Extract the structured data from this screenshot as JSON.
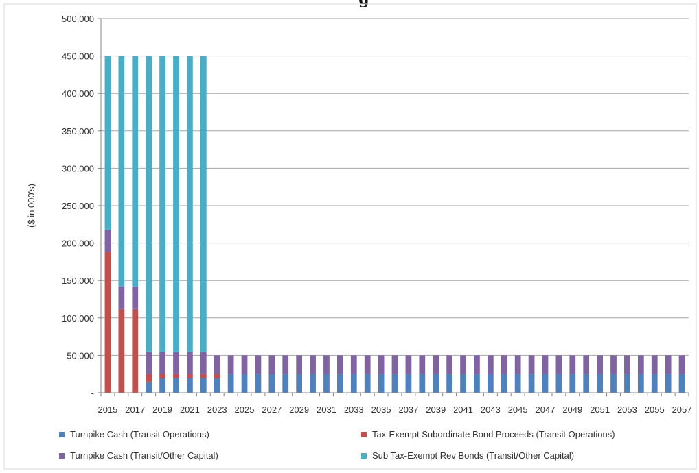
{
  "title_fragment": "g",
  "chart_data": {
    "type": "bar",
    "stacked": true,
    "title": "",
    "xlabel": "",
    "ylabel": "($ in 000's)",
    "ylim": [
      0,
      500000
    ],
    "yticks": [
      "-",
      "50,000",
      "100,000",
      "150,000",
      "200,000",
      "250,000",
      "300,000",
      "350,000",
      "400,000",
      "450,000",
      "500,000"
    ],
    "grid": "horizontal",
    "legend_position": "bottom",
    "categories": [
      2015,
      2016,
      2017,
      2018,
      2019,
      2020,
      2021,
      2022,
      2023,
      2024,
      2025,
      2026,
      2027,
      2028,
      2029,
      2030,
      2031,
      2032,
      2033,
      2034,
      2035,
      2036,
      2037,
      2038,
      2039,
      2040,
      2041,
      2042,
      2043,
      2044,
      2045,
      2046,
      2047,
      2048,
      2049,
      2050,
      2051,
      2052,
      2053,
      2054,
      2055,
      2056,
      2057
    ],
    "xtick_labels": [
      "2015",
      "2017",
      "2019",
      "2021",
      "2023",
      "2025",
      "2027",
      "2029",
      "2031",
      "2033",
      "2035",
      "2037",
      "2039",
      "2041",
      "2043",
      "2045",
      "2047",
      "2049",
      "2051",
      "2053",
      "2055",
      "2057"
    ],
    "series": [
      {
        "name": "Turnpike Cash (Transit Operations)",
        "color": "#4f81bd",
        "values": [
          0,
          0,
          0,
          15000,
          20000,
          20000,
          20000,
          20000,
          20000,
          25000,
          25000,
          25000,
          25000,
          25000,
          25000,
          25000,
          25000,
          25000,
          25000,
          25000,
          25000,
          25000,
          25000,
          25000,
          25000,
          25000,
          25000,
          25000,
          25000,
          25000,
          25000,
          25000,
          25000,
          25000,
          25000,
          25000,
          25000,
          25000,
          25000,
          25000,
          25000,
          25000,
          25000
        ]
      },
      {
        "name": "Tax-Exempt Subordinate Bond Proceeds (Transit Operations)",
        "color": "#c0504d",
        "values": [
          188000,
          112000,
          112000,
          10000,
          5000,
          5000,
          5000,
          5000,
          5000,
          0,
          0,
          0,
          0,
          0,
          0,
          0,
          0,
          0,
          0,
          0,
          0,
          0,
          0,
          0,
          0,
          0,
          0,
          0,
          0,
          0,
          0,
          0,
          0,
          0,
          0,
          0,
          0,
          0,
          0,
          0,
          0,
          0,
          0
        ]
      },
      {
        "name": "Turnpike Cash (Transit/Other Capital)",
        "color": "#8064a2",
        "values": [
          30000,
          30000,
          30000,
          30000,
          30000,
          30000,
          30000,
          30000,
          25000,
          25000,
          25000,
          25000,
          25000,
          25000,
          25000,
          25000,
          25000,
          25000,
          25000,
          25000,
          25000,
          25000,
          25000,
          25000,
          25000,
          25000,
          25000,
          25000,
          25000,
          25000,
          25000,
          25000,
          25000,
          25000,
          25000,
          25000,
          25000,
          25000,
          25000,
          25000,
          25000,
          25000,
          25000
        ]
      },
      {
        "name": "Sub Tax-Exempt Rev Bonds (Transit/Other Capital)",
        "color": "#4bacc6",
        "values": [
          232000,
          308000,
          308000,
          395000,
          395000,
          395000,
          395000,
          395000,
          0,
          0,
          0,
          0,
          0,
          0,
          0,
          0,
          0,
          0,
          0,
          0,
          0,
          0,
          0,
          0,
          0,
          0,
          0,
          0,
          0,
          0,
          0,
          0,
          0,
          0,
          0,
          0,
          0,
          0,
          0,
          0,
          0,
          0,
          0
        ]
      }
    ]
  }
}
